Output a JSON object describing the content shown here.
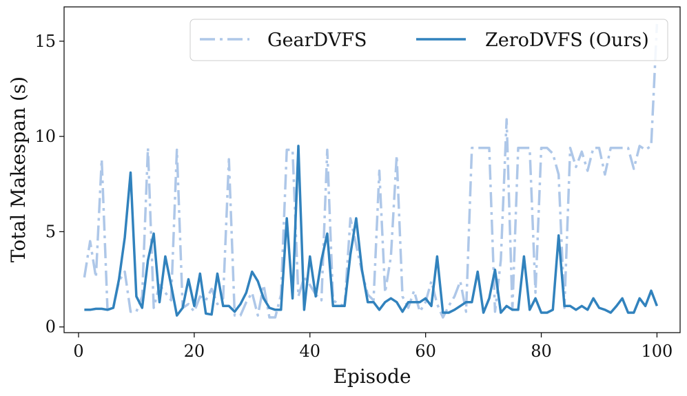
{
  "chart_data": {
    "type": "line",
    "title": "",
    "xlabel": "Episode",
    "ylabel": "Total Makespan (s)",
    "xlim": [
      -2.5,
      104
    ],
    "ylim": [
      -0.3,
      16.8
    ],
    "xticks": [
      0,
      20,
      40,
      60,
      80,
      100
    ],
    "yticks": [
      0,
      5,
      10,
      15
    ],
    "grid": false,
    "legend_position": "top-right",
    "series": [
      {
        "name": "GearDVFS",
        "color": "#aec7e8",
        "style": "dash-dot",
        "x": [
          1,
          2,
          3,
          4,
          5,
          6,
          7,
          8,
          9,
          10,
          11,
          12,
          13,
          14,
          15,
          16,
          17,
          18,
          19,
          20,
          21,
          22,
          23,
          24,
          25,
          26,
          27,
          28,
          29,
          30,
          31,
          32,
          33,
          34,
          35,
          36,
          37,
          38,
          39,
          40,
          41,
          42,
          43,
          44,
          45,
          46,
          47,
          48,
          49,
          50,
          51,
          52,
          53,
          54,
          55,
          56,
          57,
          58,
          59,
          60,
          61,
          62,
          63,
          64,
          65,
          66,
          67,
          68,
          69,
          70,
          71,
          72,
          73,
          74,
          75,
          76,
          77,
          78,
          79,
          80,
          81,
          82,
          83,
          84,
          85,
          86,
          87,
          88,
          89,
          90,
          91,
          92,
          93,
          94,
          95,
          96,
          97,
          98,
          99,
          100
        ],
        "values": [
          2.6,
          4.5,
          2.6,
          8.8,
          0.9,
          1.0,
          2.4,
          2.9,
          0.8,
          0.8,
          1.6,
          9.4,
          1.0,
          2.2,
          1.8,
          1.4,
          9.3,
          1.0,
          1.2,
          0.8,
          1.6,
          1.4,
          2.0,
          1.2,
          1.5,
          8.8,
          0.6,
          0.6,
          1.3,
          1.8,
          0.6,
          2.2,
          0.5,
          0.5,
          1.7,
          9.3,
          9.3,
          1.6,
          2.6,
          2.2,
          1.7,
          1.4,
          9.3,
          1.4,
          1.2,
          1.1,
          5.7,
          4.3,
          2.9,
          1.7,
          1.4,
          8.2,
          1.8,
          3.7,
          9.0,
          1.6,
          1.0,
          1.9,
          0.8,
          1.3,
          2.4,
          1.2,
          0.5,
          1.1,
          1.6,
          2.4,
          0.8,
          9.4,
          9.4,
          9.4,
          9.4,
          0.8,
          3.5,
          10.9,
          0.9,
          9.4,
          9.4,
          9.4,
          1.8,
          9.4,
          9.4,
          9.1,
          8.0,
          1.0,
          9.4,
          8.4,
          9.2,
          8.2,
          9.4,
          9.4,
          8.0,
          9.4,
          9.4,
          9.4,
          9.4,
          8.3,
          9.5,
          9.3,
          9.5,
          15.9
        ]
      },
      {
        "name": "ZeroDVFS (Ours)",
        "color": "#3182bd",
        "style": "solid",
        "x": [
          1,
          2,
          3,
          4,
          5,
          6,
          7,
          8,
          9,
          10,
          11,
          12,
          13,
          14,
          15,
          16,
          17,
          18,
          19,
          20,
          21,
          22,
          23,
          24,
          25,
          26,
          27,
          28,
          29,
          30,
          31,
          32,
          33,
          34,
          35,
          36,
          37,
          38,
          39,
          40,
          41,
          42,
          43,
          44,
          45,
          46,
          47,
          48,
          49,
          50,
          51,
          52,
          53,
          54,
          55,
          56,
          57,
          58,
          59,
          60,
          61,
          62,
          63,
          64,
          65,
          66,
          67,
          68,
          69,
          70,
          71,
          72,
          73,
          74,
          75,
          76,
          77,
          78,
          79,
          80,
          81,
          82,
          83,
          84,
          85,
          86,
          87,
          88,
          89,
          90,
          91,
          92,
          93,
          94,
          95,
          96,
          97,
          98,
          99,
          100
        ],
        "values": [
          0.9,
          0.9,
          0.95,
          0.95,
          0.9,
          1.0,
          2.5,
          4.7,
          8.1,
          1.6,
          1.0,
          3.5,
          4.9,
          1.3,
          3.7,
          2.2,
          0.6,
          1.0,
          2.5,
          1.1,
          2.8,
          0.7,
          0.65,
          2.8,
          1.1,
          1.1,
          0.8,
          1.2,
          1.8,
          2.9,
          2.4,
          1.5,
          1.0,
          0.9,
          0.9,
          5.7,
          1.5,
          9.5,
          0.9,
          3.7,
          1.6,
          3.5,
          4.9,
          1.1,
          1.1,
          1.1,
          3.8,
          5.7,
          3.0,
          1.3,
          1.3,
          0.9,
          1.3,
          1.5,
          1.3,
          0.8,
          1.3,
          1.3,
          1.3,
          1.5,
          1.1,
          3.7,
          0.75,
          0.75,
          0.9,
          1.1,
          1.3,
          1.3,
          2.9,
          0.75,
          1.5,
          3.0,
          0.75,
          1.1,
          0.9,
          0.9,
          3.7,
          0.9,
          1.5,
          0.75,
          0.75,
          0.9,
          4.8,
          1.1,
          1.1,
          0.9,
          1.1,
          0.9,
          1.5,
          1.0,
          0.9,
          0.75,
          1.1,
          1.5,
          0.75,
          0.75,
          1.5,
          1.1,
          1.9,
          1.1
        ]
      }
    ]
  }
}
